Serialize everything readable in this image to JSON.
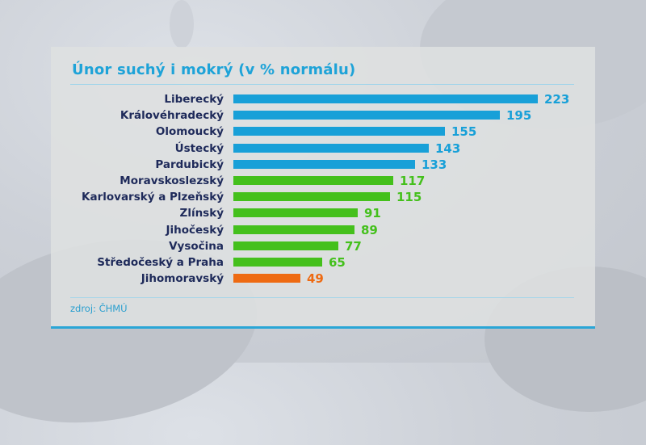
{
  "title": "Únor suchý i mokrý (v % normálu)",
  "source": "zdroj: ČHMÚ",
  "colors": {
    "above": "#18a0d8",
    "normal": "#44c01c",
    "below": "#ee6a12",
    "label": "#1e2a5a",
    "title": "#1ea3d8"
  },
  "chart_data": {
    "type": "bar",
    "orientation": "horizontal",
    "title": "Únor suchý i mokrý (v % normálu)",
    "xlabel": "",
    "ylabel": "",
    "categories": [
      "Liberecký",
      "Královéhradecký",
      "Olomoucký",
      "Ústecký",
      "Pardubický",
      "Moravskoslezský",
      "Karlovarský a Plzeňský",
      "Zlínský",
      "Jihočeský",
      "Vysočina",
      "Středočeský a Praha",
      "Jihomoravský"
    ],
    "values": [
      223,
      195,
      155,
      143,
      133,
      117,
      115,
      91,
      89,
      77,
      65,
      49
    ],
    "bar_colors": [
      "#18a0d8",
      "#18a0d8",
      "#18a0d8",
      "#18a0d8",
      "#18a0d8",
      "#44c01c",
      "#44c01c",
      "#44c01c",
      "#44c01c",
      "#44c01c",
      "#44c01c",
      "#ee6a12"
    ],
    "grid": false,
    "legend": null,
    "annotation": "zdroj: ČHMÚ"
  }
}
